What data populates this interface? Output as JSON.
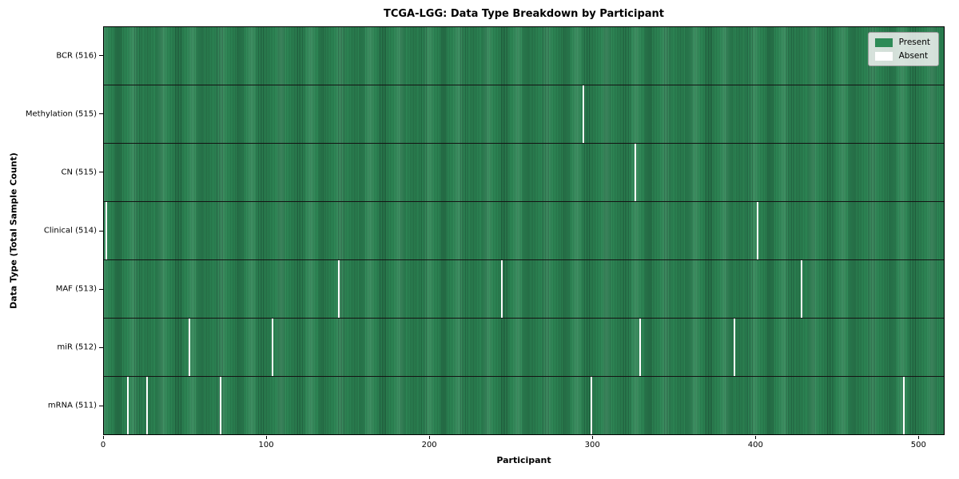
{
  "title": "TCGA-LGG: Data Type Breakdown by Participant",
  "chart_data": {
    "type": "heatmap",
    "title": "TCGA-LGG: Data Type Breakdown by Participant",
    "xlabel": "Participant",
    "ylabel": "Data Type (Total Sample Count)",
    "x_range": [
      0,
      516
    ],
    "x_ticks": [
      0,
      100,
      200,
      300,
      400,
      500
    ],
    "grid": false,
    "legend": {
      "position": "upper right",
      "entries": [
        {
          "label": "Present",
          "color": "#2e8b57"
        },
        {
          "label": "Absent",
          "color": "#ffffff"
        }
      ]
    },
    "rows": [
      {
        "label": "BCR (516)",
        "data_type": "BCR",
        "sample_count": 516,
        "absent_participants": []
      },
      {
        "label": "Methylation (515)",
        "data_type": "Methylation",
        "sample_count": 515,
        "absent_participants": [
          294
        ]
      },
      {
        "label": "CN (515)",
        "data_type": "CN",
        "sample_count": 515,
        "absent_participants": [
          326
        ]
      },
      {
        "label": "Clinical (514)",
        "data_type": "Clinical",
        "sample_count": 514,
        "absent_participants": [
          1,
          401
        ]
      },
      {
        "label": "MAF (513)",
        "data_type": "MAF",
        "sample_count": 513,
        "absent_participants": [
          144,
          244,
          428
        ]
      },
      {
        "label": "miR (512)",
        "data_type": "miR",
        "sample_count": 512,
        "absent_participants": [
          52,
          103,
          329,
          387
        ]
      },
      {
        "label": "mRNA (511)",
        "data_type": "mRNA",
        "sample_count": 511,
        "absent_participants": [
          14,
          26,
          71,
          299,
          491
        ]
      }
    ],
    "colors": {
      "present": "#2e8b57",
      "present_edge": "#21603f",
      "absent": "#ffffff",
      "row_separator": "#131313"
    }
  }
}
